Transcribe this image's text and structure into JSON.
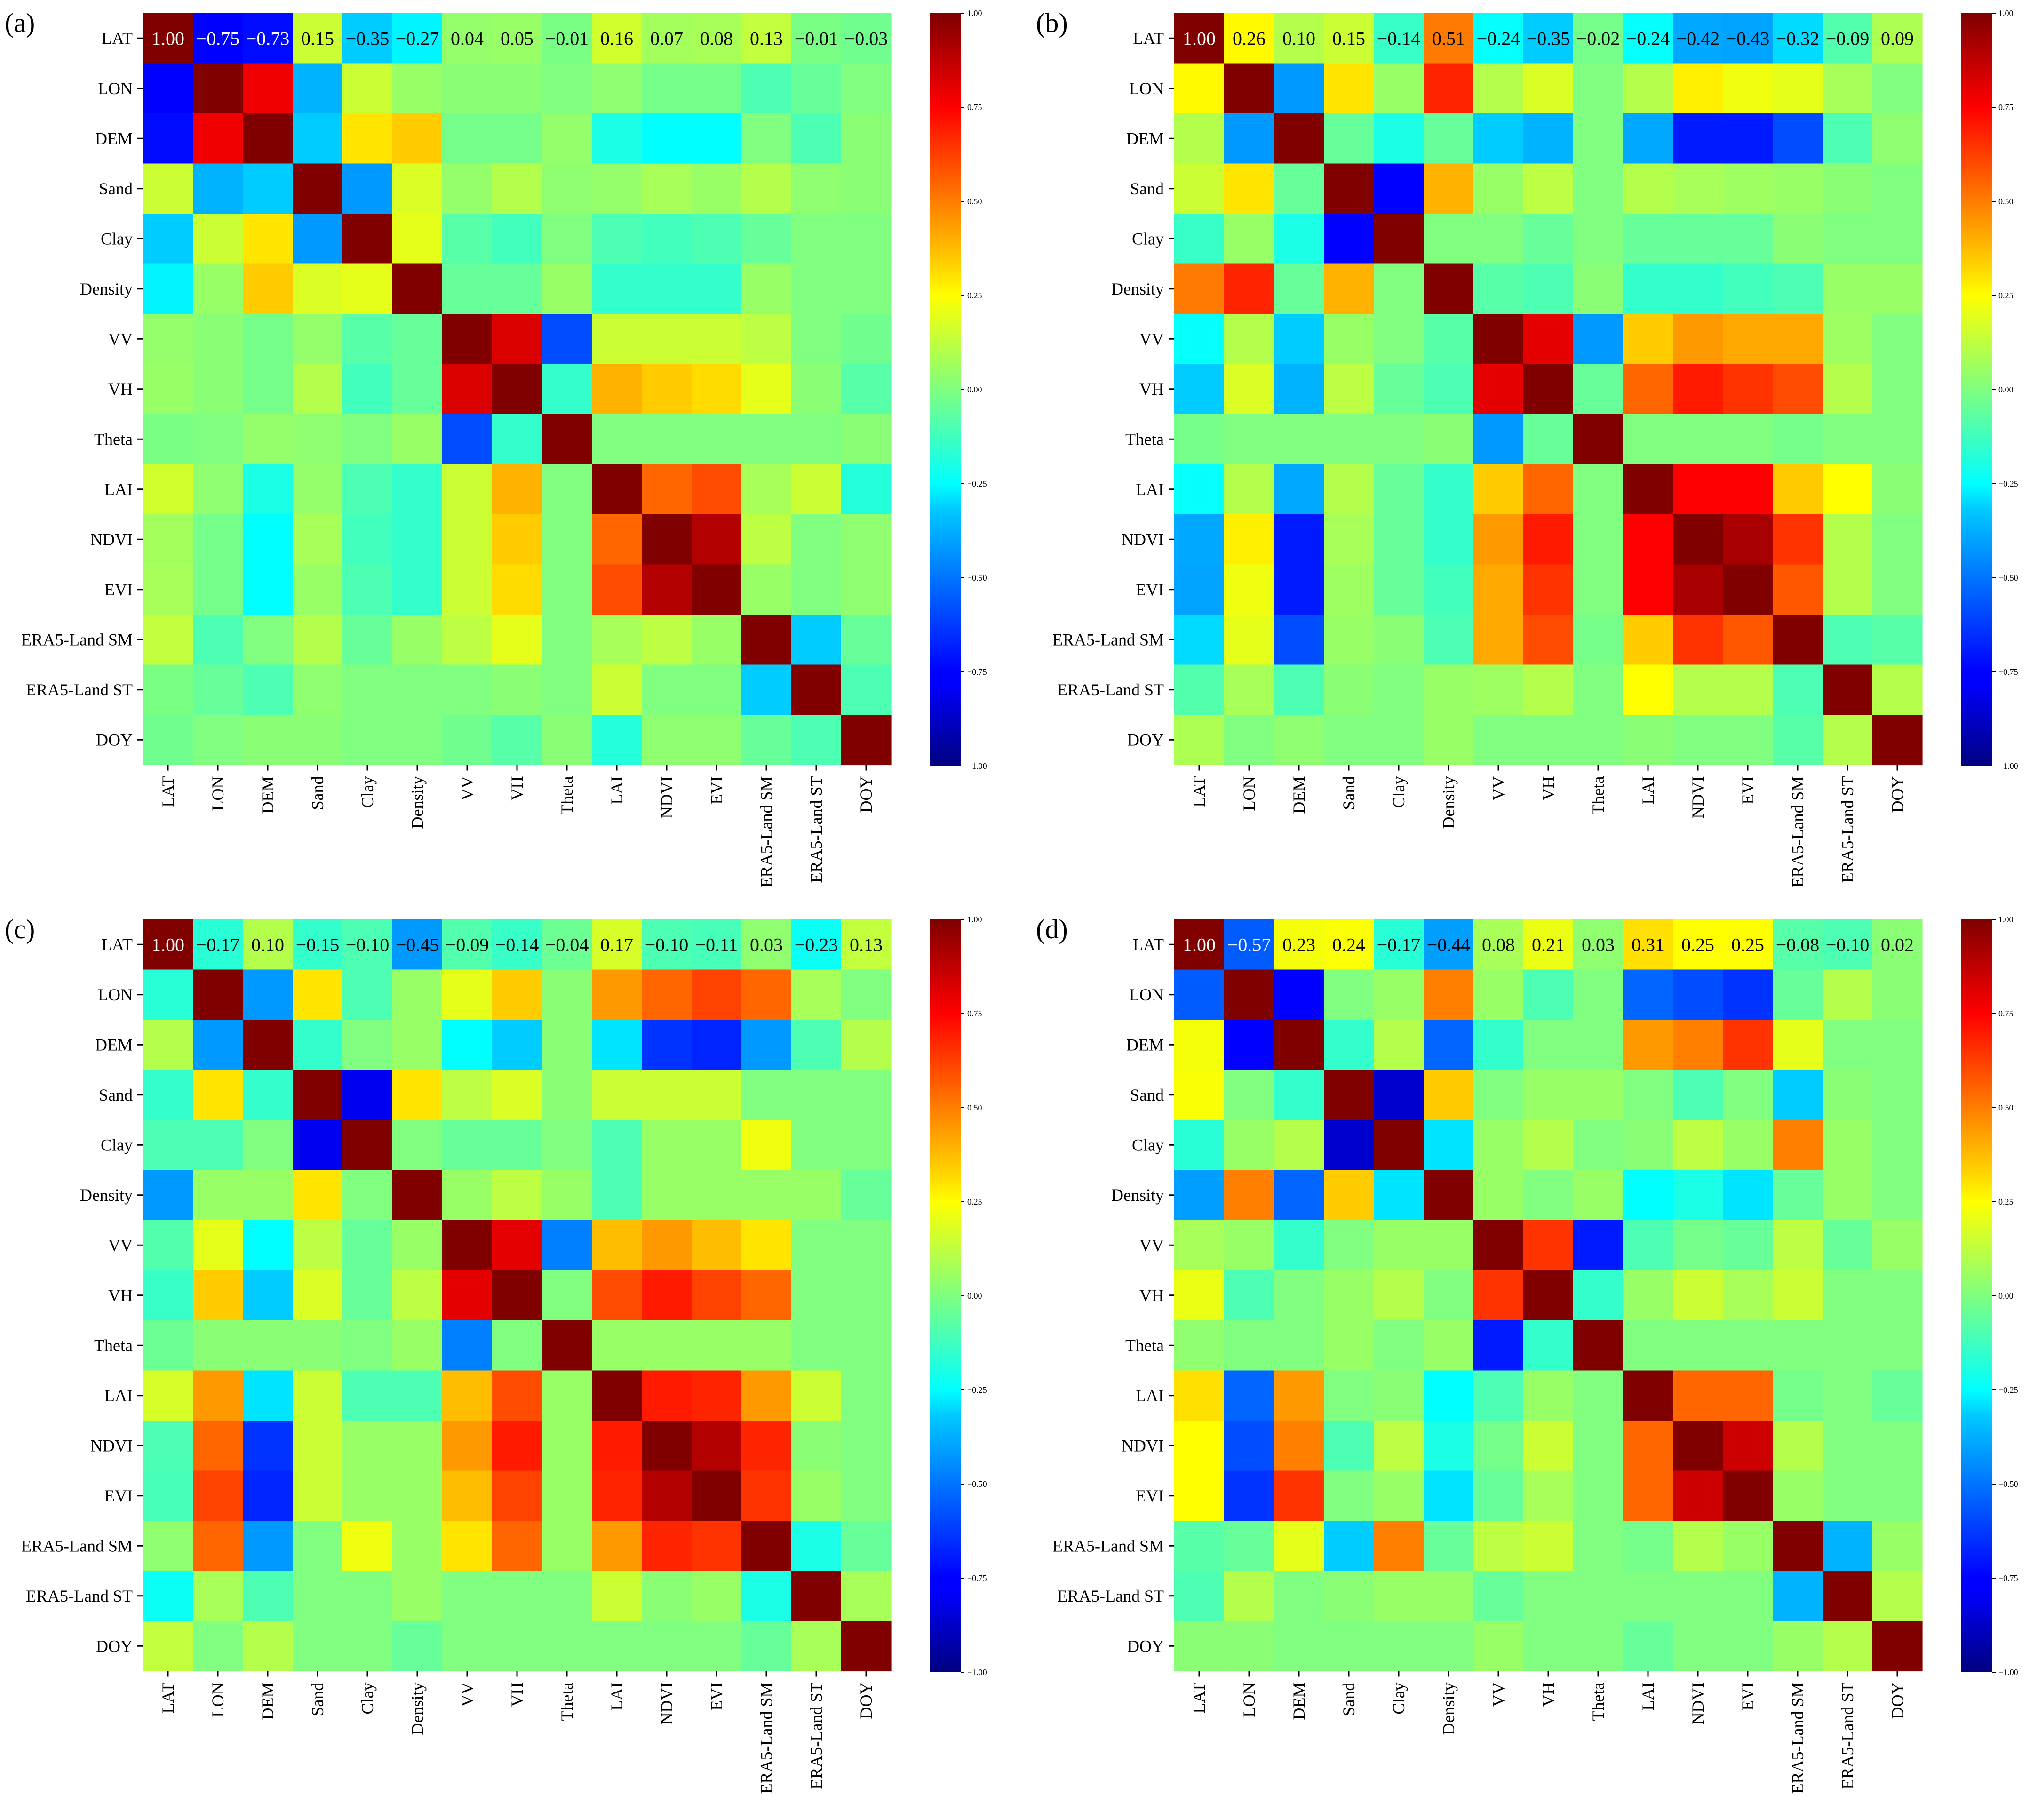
{
  "labels": [
    "LAT",
    "LON",
    "DEM",
    "Sand",
    "Clay",
    "Density",
    "VV",
    "VH",
    "Theta",
    "LAI",
    "NDVI",
    "EVI",
    "ERA5-Land SM",
    "ERA5-Land ST",
    "DOY"
  ],
  "colorbar": {
    "ticks": [
      1.0,
      0.75,
      0.5,
      0.25,
      0.0,
      -0.25,
      -0.5,
      -0.75,
      -1.0
    ],
    "tick_labels": [
      "1.00",
      "0.75",
      "0.50",
      "0.25",
      "0.00",
      "−0.25",
      "−0.50",
      "−0.75",
      "−1.00"
    ],
    "range": [
      -1,
      1
    ],
    "colormap": "jet"
  },
  "chart_data": [
    {
      "type": "heatmap",
      "panel_label": "(a)",
      "title": "",
      "x": [
        "LAT",
        "LON",
        "DEM",
        "Sand",
        "Clay",
        "Density",
        "VV",
        "VH",
        "Theta",
        "LAI",
        "NDVI",
        "EVI",
        "ERA5-Land SM",
        "ERA5-Land ST",
        "DOY"
      ],
      "y": [
        "LAT",
        "LON",
        "DEM",
        "Sand",
        "Clay",
        "Density",
        "VV",
        "VH",
        "Theta",
        "LAI",
        "NDVI",
        "EVI",
        "ERA5-Land SM",
        "ERA5-Land ST",
        "DOY"
      ],
      "annotated_row": [
        "1.00",
        "−0.75",
        "−0.73",
        "0.15",
        "−0.35",
        "−0.27",
        "0.04",
        "0.05",
        "−0.01",
        "0.16",
        "0.07",
        "0.08",
        "0.13",
        "−0.01",
        "−0.03"
      ],
      "matrix": [
        [
          1.0,
          -0.75,
          -0.73,
          0.15,
          -0.35,
          -0.27,
          0.04,
          0.05,
          -0.01,
          0.16,
          0.07,
          0.08,
          0.13,
          -0.01,
          -0.03
        ],
        [
          -0.75,
          1.0,
          0.78,
          -0.4,
          0.15,
          0.05,
          0.02,
          0.02,
          0.0,
          0.03,
          -0.02,
          -0.02,
          -0.1,
          -0.05,
          0.0
        ],
        [
          -0.73,
          0.78,
          1.0,
          -0.35,
          0.3,
          0.35,
          -0.02,
          -0.02,
          0.04,
          -0.2,
          -0.25,
          -0.25,
          0.0,
          -0.1,
          0.02
        ],
        [
          0.15,
          -0.4,
          -0.35,
          1.0,
          -0.45,
          0.18,
          0.04,
          0.1,
          0.03,
          0.04,
          0.08,
          0.05,
          0.1,
          0.03,
          0.02
        ],
        [
          -0.35,
          0.15,
          0.3,
          -0.45,
          1.0,
          0.2,
          -0.08,
          -0.12,
          0.0,
          -0.1,
          -0.12,
          -0.1,
          -0.05,
          0.0,
          0.0
        ],
        [
          -0.27,
          0.05,
          0.35,
          0.18,
          0.2,
          1.0,
          -0.05,
          -0.05,
          0.05,
          -0.15,
          -0.15,
          -0.15,
          0.05,
          0.0,
          0.0
        ],
        [
          0.04,
          0.02,
          -0.02,
          0.04,
          -0.08,
          -0.05,
          1.0,
          0.82,
          -0.6,
          0.15,
          0.15,
          0.15,
          0.12,
          0.0,
          -0.03
        ],
        [
          0.05,
          0.02,
          -0.02,
          0.1,
          -0.12,
          -0.05,
          0.82,
          1.0,
          -0.15,
          0.4,
          0.35,
          0.32,
          0.2,
          0.02,
          -0.08
        ],
        [
          -0.01,
          0.0,
          0.04,
          0.03,
          0.0,
          0.05,
          -0.6,
          -0.15,
          1.0,
          0.0,
          0.0,
          0.0,
          0.0,
          0.0,
          0.02
        ],
        [
          0.16,
          0.03,
          -0.2,
          0.04,
          -0.1,
          -0.15,
          0.15,
          0.4,
          0.0,
          1.0,
          0.55,
          0.6,
          0.08,
          0.15,
          -0.18
        ],
        [
          0.07,
          -0.02,
          -0.25,
          0.08,
          -0.12,
          -0.15,
          0.15,
          0.35,
          0.0,
          0.55,
          1.0,
          0.9,
          0.12,
          0.0,
          0.03
        ],
        [
          0.08,
          -0.02,
          -0.25,
          0.05,
          -0.1,
          -0.15,
          0.15,
          0.32,
          0.0,
          0.6,
          0.9,
          1.0,
          0.05,
          0.0,
          0.03
        ],
        [
          0.13,
          -0.1,
          0.0,
          0.1,
          -0.05,
          0.05,
          0.12,
          0.2,
          0.0,
          0.08,
          0.12,
          0.05,
          1.0,
          -0.35,
          -0.05
        ],
        [
          -0.01,
          -0.05,
          -0.1,
          0.03,
          0.0,
          0.0,
          0.0,
          0.02,
          0.0,
          0.15,
          0.0,
          0.0,
          -0.35,
          1.0,
          -0.1
        ],
        [
          -0.03,
          0.0,
          0.02,
          0.02,
          0.0,
          0.0,
          -0.03,
          -0.08,
          0.02,
          -0.18,
          0.03,
          0.03,
          -0.05,
          -0.1,
          1.0
        ]
      ]
    },
    {
      "type": "heatmap",
      "panel_label": "(b)",
      "title": "",
      "x": [
        "LAT",
        "LON",
        "DEM",
        "Sand",
        "Clay",
        "Density",
        "VV",
        "VH",
        "Theta",
        "LAI",
        "NDVI",
        "EVI",
        "ERA5-Land SM",
        "ERA5-Land ST",
        "DOY"
      ],
      "y": [
        "LAT",
        "LON",
        "DEM",
        "Sand",
        "Clay",
        "Density",
        "VV",
        "VH",
        "Theta",
        "LAI",
        "NDVI",
        "EVI",
        "ERA5-Land SM",
        "ERA5-Land ST",
        "DOY"
      ],
      "annotated_row": [
        "1.00",
        "0.26",
        "0.10",
        "0.15",
        "−0.14",
        "0.51",
        "−0.24",
        "−0.35",
        "−0.02",
        "−0.24",
        "−0.42",
        "−0.43",
        "−0.32",
        "−0.09",
        "0.09"
      ],
      "matrix": [
        [
          1.0,
          0.26,
          0.1,
          0.15,
          -0.14,
          0.51,
          -0.24,
          -0.35,
          -0.02,
          -0.24,
          -0.42,
          -0.43,
          -0.32,
          -0.09,
          0.09
        ],
        [
          0.26,
          1.0,
          -0.45,
          0.3,
          0.05,
          0.68,
          0.1,
          0.18,
          0.0,
          0.1,
          0.28,
          0.22,
          0.2,
          0.08,
          0.0
        ],
        [
          0.1,
          -0.45,
          1.0,
          -0.05,
          -0.2,
          -0.05,
          -0.35,
          -0.4,
          0.0,
          -0.42,
          -0.7,
          -0.7,
          -0.6,
          -0.1,
          0.03
        ],
        [
          0.15,
          0.3,
          -0.05,
          1.0,
          -0.75,
          0.4,
          0.05,
          0.12,
          0.0,
          0.1,
          0.08,
          0.06,
          0.05,
          0.02,
          0.0
        ],
        [
          -0.14,
          0.05,
          -0.2,
          -0.75,
          1.0,
          0.0,
          0.0,
          -0.05,
          0.0,
          -0.05,
          -0.05,
          -0.05,
          0.02,
          0.0,
          0.0
        ],
        [
          0.51,
          0.68,
          -0.05,
          0.4,
          0.0,
          1.0,
          -0.08,
          -0.1,
          0.02,
          -0.15,
          -0.15,
          -0.12,
          -0.1,
          0.05,
          0.05
        ],
        [
          -0.24,
          0.1,
          -0.35,
          0.05,
          0.0,
          -0.08,
          1.0,
          0.8,
          -0.45,
          0.35,
          0.45,
          0.42,
          0.42,
          0.06,
          0.0
        ],
        [
          -0.35,
          0.18,
          -0.4,
          0.12,
          -0.05,
          -0.1,
          0.8,
          1.0,
          -0.05,
          0.55,
          0.7,
          0.65,
          0.6,
          0.1,
          0.0
        ],
        [
          -0.02,
          0.0,
          0.0,
          0.0,
          0.0,
          0.02,
          -0.45,
          -0.05,
          1.0,
          0.0,
          0.0,
          0.0,
          -0.02,
          0.0,
          0.0
        ],
        [
          -0.24,
          0.1,
          -0.42,
          0.1,
          -0.05,
          -0.15,
          0.35,
          0.55,
          0.0,
          1.0,
          0.75,
          0.75,
          0.35,
          0.25,
          0.02
        ],
        [
          -0.42,
          0.28,
          -0.7,
          0.08,
          -0.05,
          -0.15,
          0.45,
          0.7,
          0.0,
          0.75,
          1.0,
          0.92,
          0.65,
          0.1,
          0.0
        ],
        [
          -0.43,
          0.22,
          -0.7,
          0.06,
          -0.05,
          -0.12,
          0.42,
          0.65,
          0.0,
          0.75,
          0.92,
          1.0,
          0.58,
          0.1,
          0.0
        ],
        [
          -0.32,
          0.2,
          -0.6,
          0.05,
          0.02,
          -0.1,
          0.42,
          0.6,
          -0.02,
          0.35,
          0.65,
          0.58,
          1.0,
          -0.1,
          -0.08
        ],
        [
          -0.09,
          0.08,
          -0.1,
          0.02,
          0.0,
          0.05,
          0.06,
          0.1,
          0.0,
          0.25,
          0.1,
          0.1,
          -0.1,
          1.0,
          0.1
        ],
        [
          0.09,
          0.0,
          0.03,
          0.0,
          0.0,
          0.05,
          0.0,
          0.0,
          0.0,
          0.02,
          0.0,
          0.0,
          -0.08,
          0.1,
          1.0
        ]
      ]
    },
    {
      "type": "heatmap",
      "panel_label": "(c)",
      "title": "",
      "x": [
        "LAT",
        "LON",
        "DEM",
        "Sand",
        "Clay",
        "Density",
        "VV",
        "VH",
        "Theta",
        "LAI",
        "NDVI",
        "EVI",
        "ERA5-Land SM",
        "ERA5-Land ST",
        "DOY"
      ],
      "y": [
        "LAT",
        "LON",
        "DEM",
        "Sand",
        "Clay",
        "Density",
        "VV",
        "VH",
        "Theta",
        "LAI",
        "NDVI",
        "EVI",
        "ERA5-Land SM",
        "ERA5-Land ST",
        "DOY"
      ],
      "annotated_row": [
        "1.00",
        "−0.17",
        "0.10",
        "−0.15",
        "−0.10",
        "−0.45",
        "−0.09",
        "−0.14",
        "−0.04",
        "0.17",
        "−0.10",
        "−0.11",
        "0.03",
        "−0.23",
        "0.13"
      ],
      "matrix": [
        [
          1.0,
          -0.17,
          0.1,
          -0.15,
          -0.1,
          -0.45,
          -0.09,
          -0.14,
          -0.04,
          0.17,
          -0.1,
          -0.11,
          0.03,
          -0.23,
          0.13
        ],
        [
          -0.17,
          1.0,
          -0.45,
          0.3,
          -0.1,
          0.05,
          0.2,
          0.35,
          0.02,
          0.45,
          0.55,
          0.62,
          0.55,
          0.08,
          0.0
        ],
        [
          0.1,
          -0.45,
          1.0,
          -0.15,
          0.0,
          0.05,
          -0.25,
          -0.35,
          0.02,
          -0.3,
          -0.65,
          -0.68,
          -0.45,
          -0.1,
          0.1
        ],
        [
          -0.15,
          0.3,
          -0.15,
          1.0,
          -0.78,
          0.3,
          0.12,
          0.18,
          0.02,
          0.15,
          0.15,
          0.15,
          0.0,
          0.0,
          0.0
        ],
        [
          -0.1,
          -0.1,
          0.0,
          -0.78,
          1.0,
          0.0,
          -0.05,
          -0.05,
          0.0,
          -0.1,
          0.05,
          0.05,
          0.22,
          0.0,
          0.0
        ],
        [
          -0.45,
          0.05,
          0.05,
          0.3,
          0.0,
          1.0,
          0.05,
          0.12,
          0.05,
          -0.1,
          0.05,
          0.05,
          0.05,
          0.05,
          -0.05
        ],
        [
          -0.09,
          0.2,
          -0.25,
          0.12,
          -0.05,
          0.05,
          1.0,
          0.8,
          -0.5,
          0.38,
          0.45,
          0.38,
          0.3,
          0.0,
          0.0
        ],
        [
          -0.14,
          0.35,
          -0.35,
          0.18,
          -0.05,
          0.12,
          0.8,
          1.0,
          0.0,
          0.6,
          0.7,
          0.62,
          0.55,
          0.0,
          0.0
        ],
        [
          -0.04,
          0.02,
          0.02,
          0.02,
          0.0,
          0.05,
          -0.5,
          0.0,
          1.0,
          0.05,
          0.05,
          0.05,
          0.05,
          0.0,
          0.0
        ],
        [
          0.17,
          0.45,
          -0.3,
          0.15,
          -0.1,
          -0.1,
          0.38,
          0.6,
          0.05,
          1.0,
          0.7,
          0.68,
          0.45,
          0.15,
          0.0
        ],
        [
          -0.1,
          0.55,
          -0.65,
          0.15,
          0.05,
          0.05,
          0.45,
          0.7,
          0.05,
          0.7,
          1.0,
          0.9,
          0.68,
          0.02,
          0.0
        ],
        [
          -0.11,
          0.62,
          -0.68,
          0.15,
          0.05,
          0.05,
          0.38,
          0.62,
          0.05,
          0.68,
          0.9,
          1.0,
          0.65,
          0.05,
          0.0
        ],
        [
          0.03,
          0.55,
          -0.45,
          0.0,
          0.22,
          0.05,
          0.3,
          0.55,
          0.05,
          0.45,
          0.68,
          0.65,
          1.0,
          -0.2,
          -0.05
        ],
        [
          -0.23,
          0.08,
          -0.1,
          0.0,
          0.0,
          0.05,
          0.0,
          0.0,
          0.0,
          0.15,
          0.02,
          0.05,
          -0.2,
          1.0,
          0.08
        ],
        [
          0.13,
          0.0,
          0.1,
          0.0,
          0.0,
          -0.05,
          0.0,
          0.0,
          0.0,
          0.0,
          0.0,
          0.0,
          -0.05,
          0.08,
          1.0
        ]
      ]
    },
    {
      "type": "heatmap",
      "panel_label": "(d)",
      "title": "",
      "x": [
        "LAT",
        "LON",
        "DEM",
        "Sand",
        "Clay",
        "Density",
        "VV",
        "VH",
        "Theta",
        "LAI",
        "NDVI",
        "EVI",
        "ERA5-Land SM",
        "ERA5-Land ST",
        "DOY"
      ],
      "y": [
        "LAT",
        "LON",
        "DEM",
        "Sand",
        "Clay",
        "Density",
        "VV",
        "VH",
        "Theta",
        "LAI",
        "NDVI",
        "EVI",
        "ERA5-Land SM",
        "ERA5-Land ST",
        "DOY"
      ],
      "annotated_row": [
        "1.00",
        "−0.57",
        "0.23",
        "0.24",
        "−0.17",
        "−0.44",
        "0.08",
        "0.21",
        "0.03",
        "0.31",
        "0.25",
        "0.25",
        "−0.08",
        "−0.10",
        "0.02"
      ],
      "matrix": [
        [
          1.0,
          -0.57,
          0.23,
          0.24,
          -0.17,
          -0.44,
          0.08,
          0.21,
          0.03,
          0.31,
          0.25,
          0.25,
          -0.08,
          -0.1,
          0.02
        ],
        [
          -0.57,
          1.0,
          -0.75,
          0.0,
          0.05,
          0.5,
          0.05,
          -0.1,
          0.0,
          -0.55,
          -0.6,
          -0.65,
          -0.05,
          0.1,
          0.02
        ],
        [
          0.23,
          -0.75,
          1.0,
          -0.15,
          0.1,
          -0.55,
          -0.15,
          0.0,
          0.0,
          0.45,
          0.5,
          0.65,
          0.2,
          0.0,
          0.0
        ],
        [
          0.24,
          0.0,
          -0.15,
          1.0,
          -0.85,
          0.35,
          0.0,
          0.05,
          0.05,
          0.0,
          -0.1,
          0.0,
          -0.35,
          0.02,
          0.0
        ],
        [
          -0.17,
          0.05,
          0.1,
          -0.85,
          1.0,
          -0.3,
          0.05,
          0.1,
          0.0,
          0.02,
          0.12,
          0.05,
          0.5,
          0.05,
          0.0
        ],
        [
          -0.44,
          0.5,
          -0.55,
          0.35,
          -0.3,
          1.0,
          0.05,
          0.0,
          0.05,
          -0.25,
          -0.2,
          -0.3,
          -0.05,
          0.05,
          0.0
        ],
        [
          0.08,
          0.05,
          -0.15,
          0.0,
          0.05,
          0.05,
          1.0,
          0.65,
          -0.7,
          -0.1,
          -0.02,
          -0.05,
          0.12,
          -0.05,
          0.05
        ],
        [
          0.21,
          -0.1,
          0.0,
          0.05,
          0.1,
          0.0,
          0.65,
          1.0,
          -0.15,
          0.05,
          0.15,
          0.08,
          0.15,
          0.0,
          0.0
        ],
        [
          0.03,
          0.0,
          0.0,
          0.05,
          0.0,
          0.05,
          -0.7,
          -0.15,
          1.0,
          0.0,
          0.0,
          0.0,
          0.0,
          0.0,
          0.0
        ],
        [
          0.31,
          -0.55,
          0.45,
          0.0,
          0.02,
          -0.25,
          -0.1,
          0.05,
          0.0,
          1.0,
          0.55,
          0.55,
          -0.02,
          0.0,
          -0.05
        ],
        [
          0.25,
          -0.6,
          0.5,
          -0.1,
          0.12,
          -0.2,
          -0.02,
          0.15,
          0.0,
          0.55,
          1.0,
          0.85,
          0.1,
          0.0,
          0.0
        ],
        [
          0.25,
          -0.65,
          0.65,
          0.0,
          0.05,
          -0.3,
          -0.05,
          0.08,
          0.0,
          0.55,
          0.85,
          1.0,
          0.05,
          0.0,
          0.0
        ],
        [
          -0.08,
          -0.05,
          0.2,
          -0.35,
          0.5,
          -0.05,
          0.12,
          0.15,
          0.0,
          -0.02,
          0.1,
          0.05,
          1.0,
          -0.4,
          0.05
        ],
        [
          -0.1,
          0.1,
          0.0,
          0.02,
          0.05,
          0.05,
          -0.05,
          0.0,
          0.0,
          0.0,
          0.0,
          0.0,
          -0.4,
          1.0,
          0.1
        ],
        [
          0.02,
          0.02,
          0.0,
          0.0,
          0.0,
          0.0,
          0.05,
          0.0,
          0.0,
          -0.05,
          0.0,
          0.0,
          0.05,
          0.1,
          1.0
        ]
      ]
    }
  ]
}
